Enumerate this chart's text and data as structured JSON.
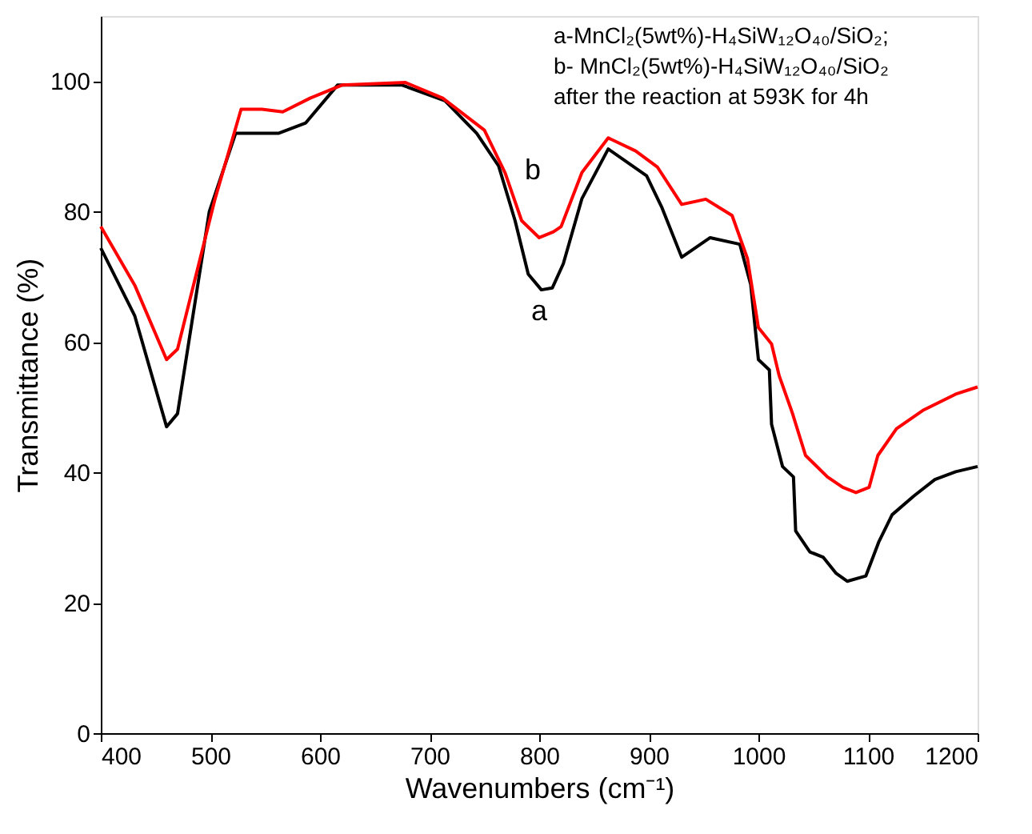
{
  "chart_data": {
    "type": "line",
    "xlabel": "Wavenumbers (cm⁻¹)",
    "ylabel": "Transmittance (%)",
    "xlim": [
      400,
      1200
    ],
    "ylim": [
      0,
      110
    ],
    "xticks": [
      400,
      500,
      600,
      700,
      800,
      900,
      1000,
      1100,
      1200
    ],
    "yticks": [
      0,
      20,
      40,
      60,
      80,
      100
    ],
    "grid": false,
    "legend": false,
    "line_style": "solid",
    "marker": "none",
    "series": [
      {
        "color": "#000000",
        "x": [
          400,
          431,
          460,
          470,
          499,
          523,
          562,
          587,
          616,
          675,
          714,
          743,
          763,
          778,
          790,
          802,
          812,
          822,
          839,
          863,
          898,
          912,
          930,
          956,
          983,
          993,
          1000,
          1010,
          1012,
          1022,
          1032,
          1034,
          1047,
          1059,
          1071,
          1081,
          1098,
          1110,
          1122,
          1142,
          1161,
          1180,
          1200
        ],
        "values": [
          74.4,
          64,
          47,
          49,
          80,
          92,
          92,
          93.6,
          99.4,
          99.4,
          97,
          92,
          87,
          78.6,
          70.4,
          68,
          68.3,
          72,
          82,
          89.6,
          85.5,
          80.6,
          73,
          76,
          75,
          68.8,
          57.3,
          55.7,
          47.4,
          40.9,
          39.3,
          31,
          27.8,
          27,
          24.5,
          23.3,
          24.1,
          29.4,
          33.5,
          36.4,
          38.9,
          40.1,
          40.9
        ]
      },
      {
        "color": "#ff0000",
        "x": [
          400,
          431,
          460,
          470,
          504,
          528,
          547,
          566,
          591,
          620,
          678,
          712,
          750,
          769,
          784,
          800,
          813,
          820,
          839,
          863,
          888,
          908,
          930,
          952,
          976,
          990,
          1000,
          1012,
          1019,
          1031,
          1043,
          1063,
          1077,
          1089,
          1101,
          1109,
          1126,
          1150,
          1180,
          1200
        ],
        "values": [
          77.7,
          68.7,
          57.3,
          58.9,
          81.8,
          95.7,
          95.7,
          95.3,
          97.4,
          99.4,
          99.8,
          97.4,
          92.5,
          85.9,
          78.6,
          76,
          76.9,
          77.7,
          86,
          91.3,
          89.3,
          86.8,
          81.1,
          81.9,
          79.4,
          72.8,
          62.2,
          59.7,
          54.8,
          49.1,
          42.6,
          39.3,
          37.7,
          36.9,
          37.7,
          42.6,
          46.7,
          49.5,
          52,
          53.1
        ]
      }
    ],
    "annotations": [
      "a-MnCl₂(5wt%)-H₄SiW₁₂O₄₀/SiO₂;",
      "b- MnCl₂(5wt%)-H₄SiW₁₂O₄₀/SiO₂",
      "after the reaction at 593K for 4h",
      "a",
      "b"
    ]
  }
}
